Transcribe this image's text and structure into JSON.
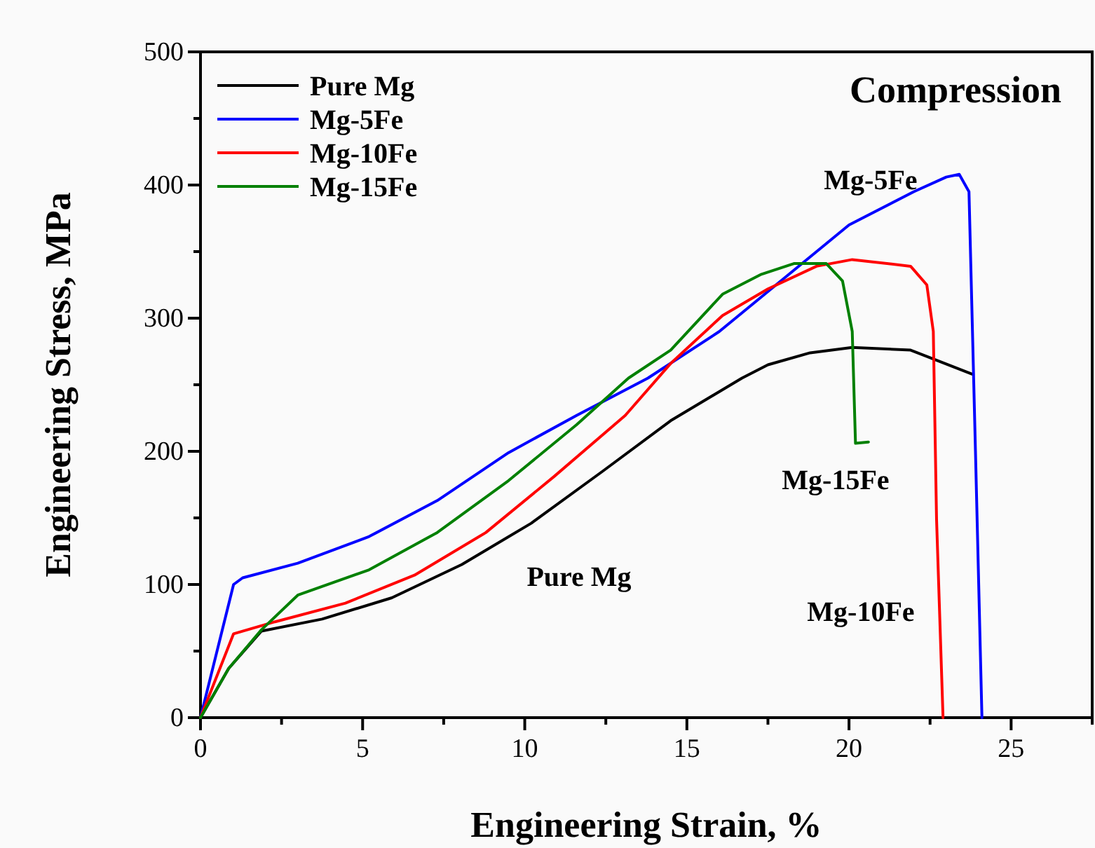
{
  "chart_data": {
    "type": "line",
    "xlabel": "Engineering Strain, %",
    "ylabel": "Engineering Stress, MPa",
    "xlim": [
      0,
      27.5
    ],
    "ylim": [
      0,
      500
    ],
    "xticks": [
      0,
      {
        "value": 2.5,
        "label": null
      },
      5,
      {
        "value": 7.5,
        "label": null
      },
      10,
      {
        "value": 12.5,
        "label": null
      },
      15,
      {
        "value": 17.5,
        "label": null
      },
      20,
      {
        "value": 22.5,
        "label": null
      },
      25,
      {
        "value": 27.5,
        "label": null
      }
    ],
    "yticks": [
      0,
      {
        "value": 50,
        "label": null
      },
      100,
      {
        "value": 150,
        "label": null
      },
      200,
      {
        "value": 250,
        "label": null
      },
      300,
      {
        "value": 350,
        "label": null
      },
      400,
      {
        "value": 450,
        "label": null
      },
      500
    ],
    "grid": false,
    "legend": "top left",
    "marker": "none",
    "line_style": "solid",
    "series": [
      {
        "name": "Pure Mg",
        "color": "#000000",
        "x": [
          0,
          0.87,
          1.88,
          3.75,
          5.9,
          8.06,
          10.2,
          12.4,
          14.5,
          16.7,
          17.5,
          18.8,
          20.1,
          21.9,
          23.8
        ],
        "values": [
          0,
          37,
          65,
          74,
          90,
          115,
          146,
          185,
          223,
          255,
          265,
          274,
          278,
          276,
          258
        ]
      },
      {
        "name": "Mg-5Fe",
        "color": "#0000ff",
        "x": [
          0,
          1.02,
          1.3,
          3.0,
          5.2,
          7.3,
          9.5,
          11.6,
          13.8,
          16,
          18,
          20,
          22,
          23.0,
          23.4,
          23.7,
          23.9,
          24.1
        ],
        "values": [
          0,
          100,
          105,
          116,
          136,
          163,
          199,
          227,
          255,
          290,
          330,
          370,
          395,
          406,
          408,
          395,
          200,
          0
        ]
      },
      {
        "name": "Mg-10Fe",
        "color": "#ff0000",
        "x": [
          0,
          1.02,
          2.3,
          4.47,
          6.6,
          8.8,
          10.9,
          13.1,
          14.5,
          16.1,
          17.5,
          19.0,
          20.1,
          21.9,
          22.4,
          22.6,
          22.7,
          22.9
        ],
        "values": [
          0,
          63,
          72,
          86,
          107,
          139,
          181,
          227,
          266,
          302,
          322,
          339,
          344,
          339,
          325,
          290,
          149,
          0
        ]
      },
      {
        "name": "Mg-15Fe",
        "color": "#008000",
        "x": [
          0,
          0.87,
          1.88,
          3.0,
          5.2,
          7.3,
          9.5,
          11.6,
          13.2,
          14.5,
          16.1,
          17.3,
          18.3,
          19.3,
          19.8,
          20.1,
          20.2,
          20.6
        ],
        "values": [
          0,
          37,
          66,
          92,
          111,
          139,
          178,
          220,
          255,
          276,
          318,
          333,
          341,
          341,
          328,
          290,
          206,
          207
        ]
      }
    ],
    "annotations": [
      "Compression",
      "Mg-5Fe",
      "Mg-15Fe",
      "Mg-10Fe",
      "Pure Mg"
    ]
  }
}
